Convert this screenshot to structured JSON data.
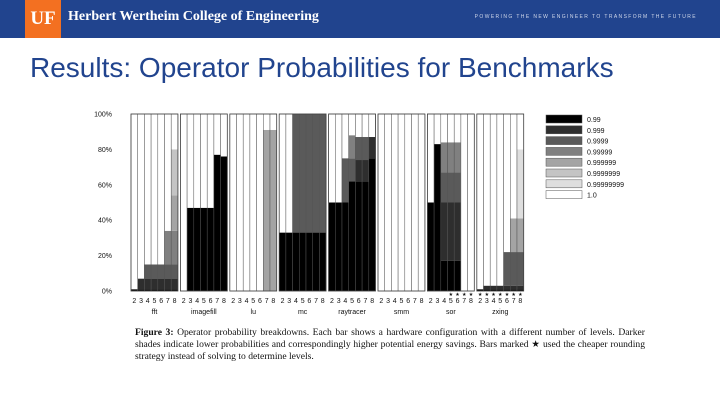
{
  "header": {
    "logo_text": "UF",
    "college_name": "Herbert Wertheim College of Engineering",
    "tagline": "POWERING THE NEW ENGINEER TO TRANSFORM THE FUTURE",
    "brand_color": "#21448e",
    "accent_color": "#f37021"
  },
  "slide": {
    "title": "Results: Operator Probabilities for Benchmarks"
  },
  "caption": {
    "label": "Figure 3:",
    "text": "Operator probability breakdowns. Each bar shows a hardware configuration with a different number of levels. Darker shades indicate lower probabilities and correspondingly higher potential energy savings. Bars marked ★ used the cheaper rounding strategy instead of solving to determine levels."
  },
  "chart_data": {
    "type": "bar",
    "stacked": true,
    "percent_axis": true,
    "ylim": [
      0,
      100
    ],
    "y_ticks": [
      "0%",
      "20%",
      "40%",
      "60%",
      "80%",
      "100%"
    ],
    "bar_labels": [
      "2",
      "3",
      "4",
      "5",
      "6",
      "7",
      "8"
    ],
    "legend_position": "right",
    "legend": [
      {
        "label": "0.99",
        "color": "#000000"
      },
      {
        "label": "0.999",
        "color": "#2e2e2e"
      },
      {
        "label": "0.9999",
        "color": "#5a5a5a"
      },
      {
        "label": "0.99999",
        "color": "#808080"
      },
      {
        "label": "0.999999",
        "color": "#a4a4a4"
      },
      {
        "label": "0.9999999",
        "color": "#c4c4c4"
      },
      {
        "label": "0.99999999",
        "color": "#dedede"
      },
      {
        "label": "1.0",
        "color": "#ffffff"
      }
    ],
    "benchmarks": [
      {
        "name": "fft",
        "stars": [
          false,
          false,
          false,
          false,
          false,
          false,
          false
        ],
        "bars": [
          [
            1,
            0,
            0,
            0,
            0,
            0,
            0,
            99
          ],
          [
            1,
            6,
            0,
            0,
            0,
            0,
            0,
            93
          ],
          [
            1,
            6,
            8,
            0,
            0,
            0,
            0,
            85
          ],
          [
            1,
            6,
            8,
            0,
            0,
            0,
            0,
            85
          ],
          [
            1,
            6,
            8,
            0,
            0,
            0,
            0,
            85
          ],
          [
            1,
            6,
            8,
            19,
            0,
            0,
            0,
            66
          ],
          [
            1,
            6,
            8,
            19,
            20,
            26,
            0,
            20
          ]
        ]
      },
      {
        "name": "imagefill",
        "stars": [
          false,
          false,
          false,
          false,
          false,
          false,
          false
        ],
        "bars": [
          [
            0,
            0,
            0,
            0,
            0,
            0,
            0,
            100
          ],
          [
            47,
            0,
            0,
            0,
            0,
            0,
            0,
            53
          ],
          [
            47,
            0,
            0,
            0,
            0,
            0,
            0,
            53
          ],
          [
            47,
            0,
            0,
            0,
            0,
            0,
            0,
            53
          ],
          [
            47,
            0,
            0,
            0,
            0,
            0,
            0,
            53
          ],
          [
            77,
            0,
            0,
            0,
            0,
            0,
            0,
            23
          ],
          [
            76,
            0,
            0,
            0,
            0,
            0,
            0,
            24
          ]
        ]
      },
      {
        "name": "lu",
        "stars": [
          false,
          false,
          false,
          false,
          false,
          false,
          false
        ],
        "bars": [
          [
            0,
            0,
            0,
            0,
            0,
            0,
            0,
            100
          ],
          [
            0,
            0,
            0,
            0,
            0,
            0,
            0,
            100
          ],
          [
            0,
            0,
            0,
            0,
            0,
            0,
            0,
            100
          ],
          [
            0,
            0,
            0,
            0,
            0,
            0,
            0,
            100
          ],
          [
            0,
            0,
            0,
            0,
            0,
            0,
            0,
            100
          ],
          [
            0,
            0,
            0,
            0,
            91,
            0,
            0,
            9
          ],
          [
            0,
            0,
            0,
            0,
            91,
            0,
            0,
            9
          ]
        ]
      },
      {
        "name": "mc",
        "stars": [
          false,
          false,
          false,
          false,
          false,
          false,
          false
        ],
        "bars": [
          [
            33,
            0,
            0,
            0,
            0,
            0,
            0,
            67
          ],
          [
            33,
            0,
            0,
            0,
            0,
            0,
            0,
            67
          ],
          [
            33,
            0,
            67,
            0,
            0,
            0,
            0,
            0
          ],
          [
            33,
            0,
            67,
            0,
            0,
            0,
            0,
            0
          ],
          [
            33,
            0,
            67,
            0,
            0,
            0,
            0,
            0
          ],
          [
            33,
            0,
            67,
            0,
            0,
            0,
            0,
            0
          ],
          [
            33,
            0,
            67,
            0,
            0,
            0,
            0,
            0
          ]
        ]
      },
      {
        "name": "raytracer",
        "stars": [
          false,
          false,
          false,
          false,
          false,
          false,
          false
        ],
        "bars": [
          [
            50,
            0,
            0,
            0,
            0,
            0,
            0,
            50
          ],
          [
            50,
            0,
            0,
            0,
            0,
            0,
            0,
            50
          ],
          [
            50,
            0,
            25,
            0,
            0,
            0,
            0,
            25
          ],
          [
            62,
            0,
            13,
            13,
            0,
            0,
            0,
            12
          ],
          [
            62,
            12,
            13,
            0,
            0,
            0,
            0,
            13
          ],
          [
            62,
            12,
            13,
            0,
            0,
            0,
            0,
            13
          ],
          [
            75,
            12,
            0,
            0,
            0,
            0,
            0,
            13
          ]
        ]
      },
      {
        "name": "smm",
        "stars": [
          false,
          false,
          false,
          false,
          false,
          false,
          false
        ],
        "bars": [
          [
            0,
            0,
            0,
            0,
            0,
            0,
            0,
            100
          ],
          [
            0,
            0,
            0,
            0,
            0,
            0,
            0,
            100
          ],
          [
            0,
            0,
            0,
            0,
            0,
            0,
            0,
            100
          ],
          [
            0,
            0,
            0,
            0,
            0,
            0,
            0,
            100
          ],
          [
            0,
            0,
            0,
            0,
            0,
            0,
            0,
            100
          ],
          [
            0,
            0,
            0,
            0,
            0,
            0,
            0,
            100
          ],
          [
            0,
            0,
            0,
            0,
            0,
            0,
            0,
            100
          ]
        ]
      },
      {
        "name": "sor",
        "stars": [
          false,
          false,
          false,
          true,
          true,
          true,
          true
        ],
        "bars": [
          [
            50,
            0,
            0,
            0,
            0,
            0,
            0,
            50
          ],
          [
            83,
            0,
            0,
            0,
            0,
            0,
            0,
            17
          ],
          [
            17,
            33,
            17,
            17,
            0,
            0,
            0,
            16
          ],
          [
            17,
            33,
            17,
            17,
            0,
            0,
            0,
            16
          ],
          [
            17,
            33,
            17,
            17,
            0,
            0,
            0,
            16
          ],
          [
            0,
            0,
            0,
            0,
            0,
            0,
            0,
            100
          ],
          [
            0,
            0,
            0,
            0,
            0,
            0,
            0,
            100
          ]
        ]
      },
      {
        "name": "zxing",
        "stars": [
          true,
          true,
          true,
          true,
          true,
          true,
          true
        ],
        "bars": [
          [
            1,
            0,
            0,
            0,
            0,
            0,
            0,
            99
          ],
          [
            1,
            2,
            0,
            0,
            0,
            0,
            0,
            97
          ],
          [
            1,
            2,
            0,
            0,
            0,
            0,
            0,
            97
          ],
          [
            1,
            2,
            0,
            0,
            0,
            0,
            0,
            97
          ],
          [
            1,
            2,
            19,
            0,
            0,
            0,
            0,
            78
          ],
          [
            1,
            2,
            19,
            0,
            19,
            0,
            0,
            59
          ],
          [
            1,
            2,
            19,
            0,
            19,
            0,
            39,
            20
          ]
        ]
      }
    ]
  }
}
